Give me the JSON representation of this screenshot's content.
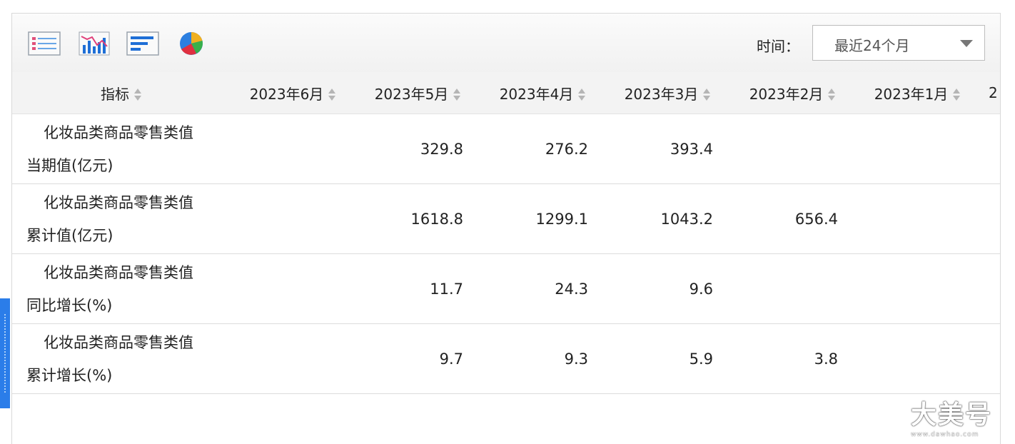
{
  "toolbar": {
    "icons": [
      "table-view-icon",
      "line-chart-icon",
      "bar-chart-icon",
      "pie-chart-icon"
    ],
    "time_label": "时间：",
    "time_select_value": "最近24个月"
  },
  "table": {
    "columns": [
      "指标",
      "2023年6月",
      "2023年5月",
      "2023年4月",
      "2023年3月",
      "2023年2月",
      "2023年1月",
      "2"
    ],
    "rows": [
      {
        "indicator_line1": "化妆品类商品零售类值",
        "indicator_line2": "当期值(亿元)",
        "values": [
          "",
          "329.8",
          "276.2",
          "393.4",
          "",
          "",
          ""
        ]
      },
      {
        "indicator_line1": "化妆品类商品零售类值",
        "indicator_line2": "累计值(亿元)",
        "values": [
          "",
          "1618.8",
          "1299.1",
          "1043.2",
          "656.4",
          "",
          ""
        ]
      },
      {
        "indicator_line1": "化妆品类商品零售类值",
        "indicator_line2": "同比增长(%)",
        "values": [
          "",
          "11.7",
          "24.3",
          "9.6",
          "",
          "",
          ""
        ]
      },
      {
        "indicator_line1": "化妆品类商品零售类值",
        "indicator_line2": "累计增长(%)",
        "values": [
          "",
          "9.7",
          "9.3",
          "5.9",
          "3.8",
          "",
          ""
        ]
      }
    ]
  },
  "watermark": {
    "text": "大美号",
    "url": "www.dawhao.com"
  },
  "colors": {
    "accent": "#2b7de9",
    "header_bg": "#f3f3f3",
    "border": "#dcdcdc"
  }
}
